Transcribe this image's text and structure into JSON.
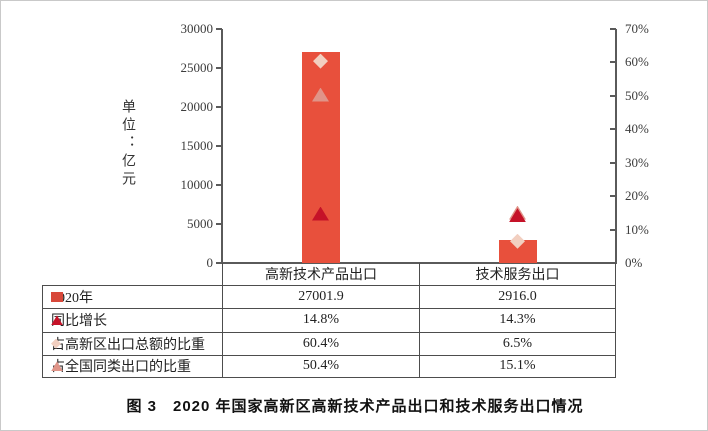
{
  "page": {
    "caption": "图 3　2020 年国家高新区高新技术产品出口和技术服务出口情况"
  },
  "chart_data": {
    "type": "bar",
    "title": "2020年国家高新区高新技术产品出口和技术服务出口情况",
    "categories": [
      "高新技术产品出口",
      "技术服务出口"
    ],
    "left_axis": {
      "title": "单位：亿元",
      "min": 0,
      "max": 30000,
      "tick_labels": [
        "0",
        "5000",
        "10000",
        "15000",
        "20000",
        "25000",
        "30000"
      ]
    },
    "right_axis": {
      "min": 0,
      "max": 70,
      "tick_labels": [
        "0%",
        "10%",
        "20%",
        "30%",
        "40%",
        "50%",
        "60%",
        "70%"
      ]
    },
    "grid": false,
    "legend_position": "table-below",
    "series": [
      {
        "name": "2020年",
        "kind": "bar",
        "axis": "left",
        "marker": "square",
        "marker_color": "#d8483a",
        "bar_color": "#e8503c",
        "values": [
          27001.9,
          2916.0
        ],
        "display": [
          "27001.9",
          "2916.0"
        ]
      },
      {
        "name": "同比增长",
        "kind": "point",
        "axis": "right",
        "marker": "triangle",
        "marker_color": "#c51228",
        "values": [
          14.8,
          14.3
        ],
        "display": [
          "14.8%",
          "14.3%"
        ]
      },
      {
        "name": "占高新区出口总额的比重",
        "kind": "point",
        "axis": "right",
        "marker": "diamond",
        "marker_color": "#f2cfc0",
        "values": [
          60.4,
          6.5
        ],
        "display": [
          "60.4%",
          "6.5%"
        ]
      },
      {
        "name": "占全国同类出口的比重",
        "kind": "point",
        "axis": "right",
        "marker": "triangle",
        "marker_color": "#e09488",
        "values": [
          50.4,
          15.1
        ],
        "display": [
          "50.4%",
          "15.1%"
        ]
      }
    ]
  }
}
